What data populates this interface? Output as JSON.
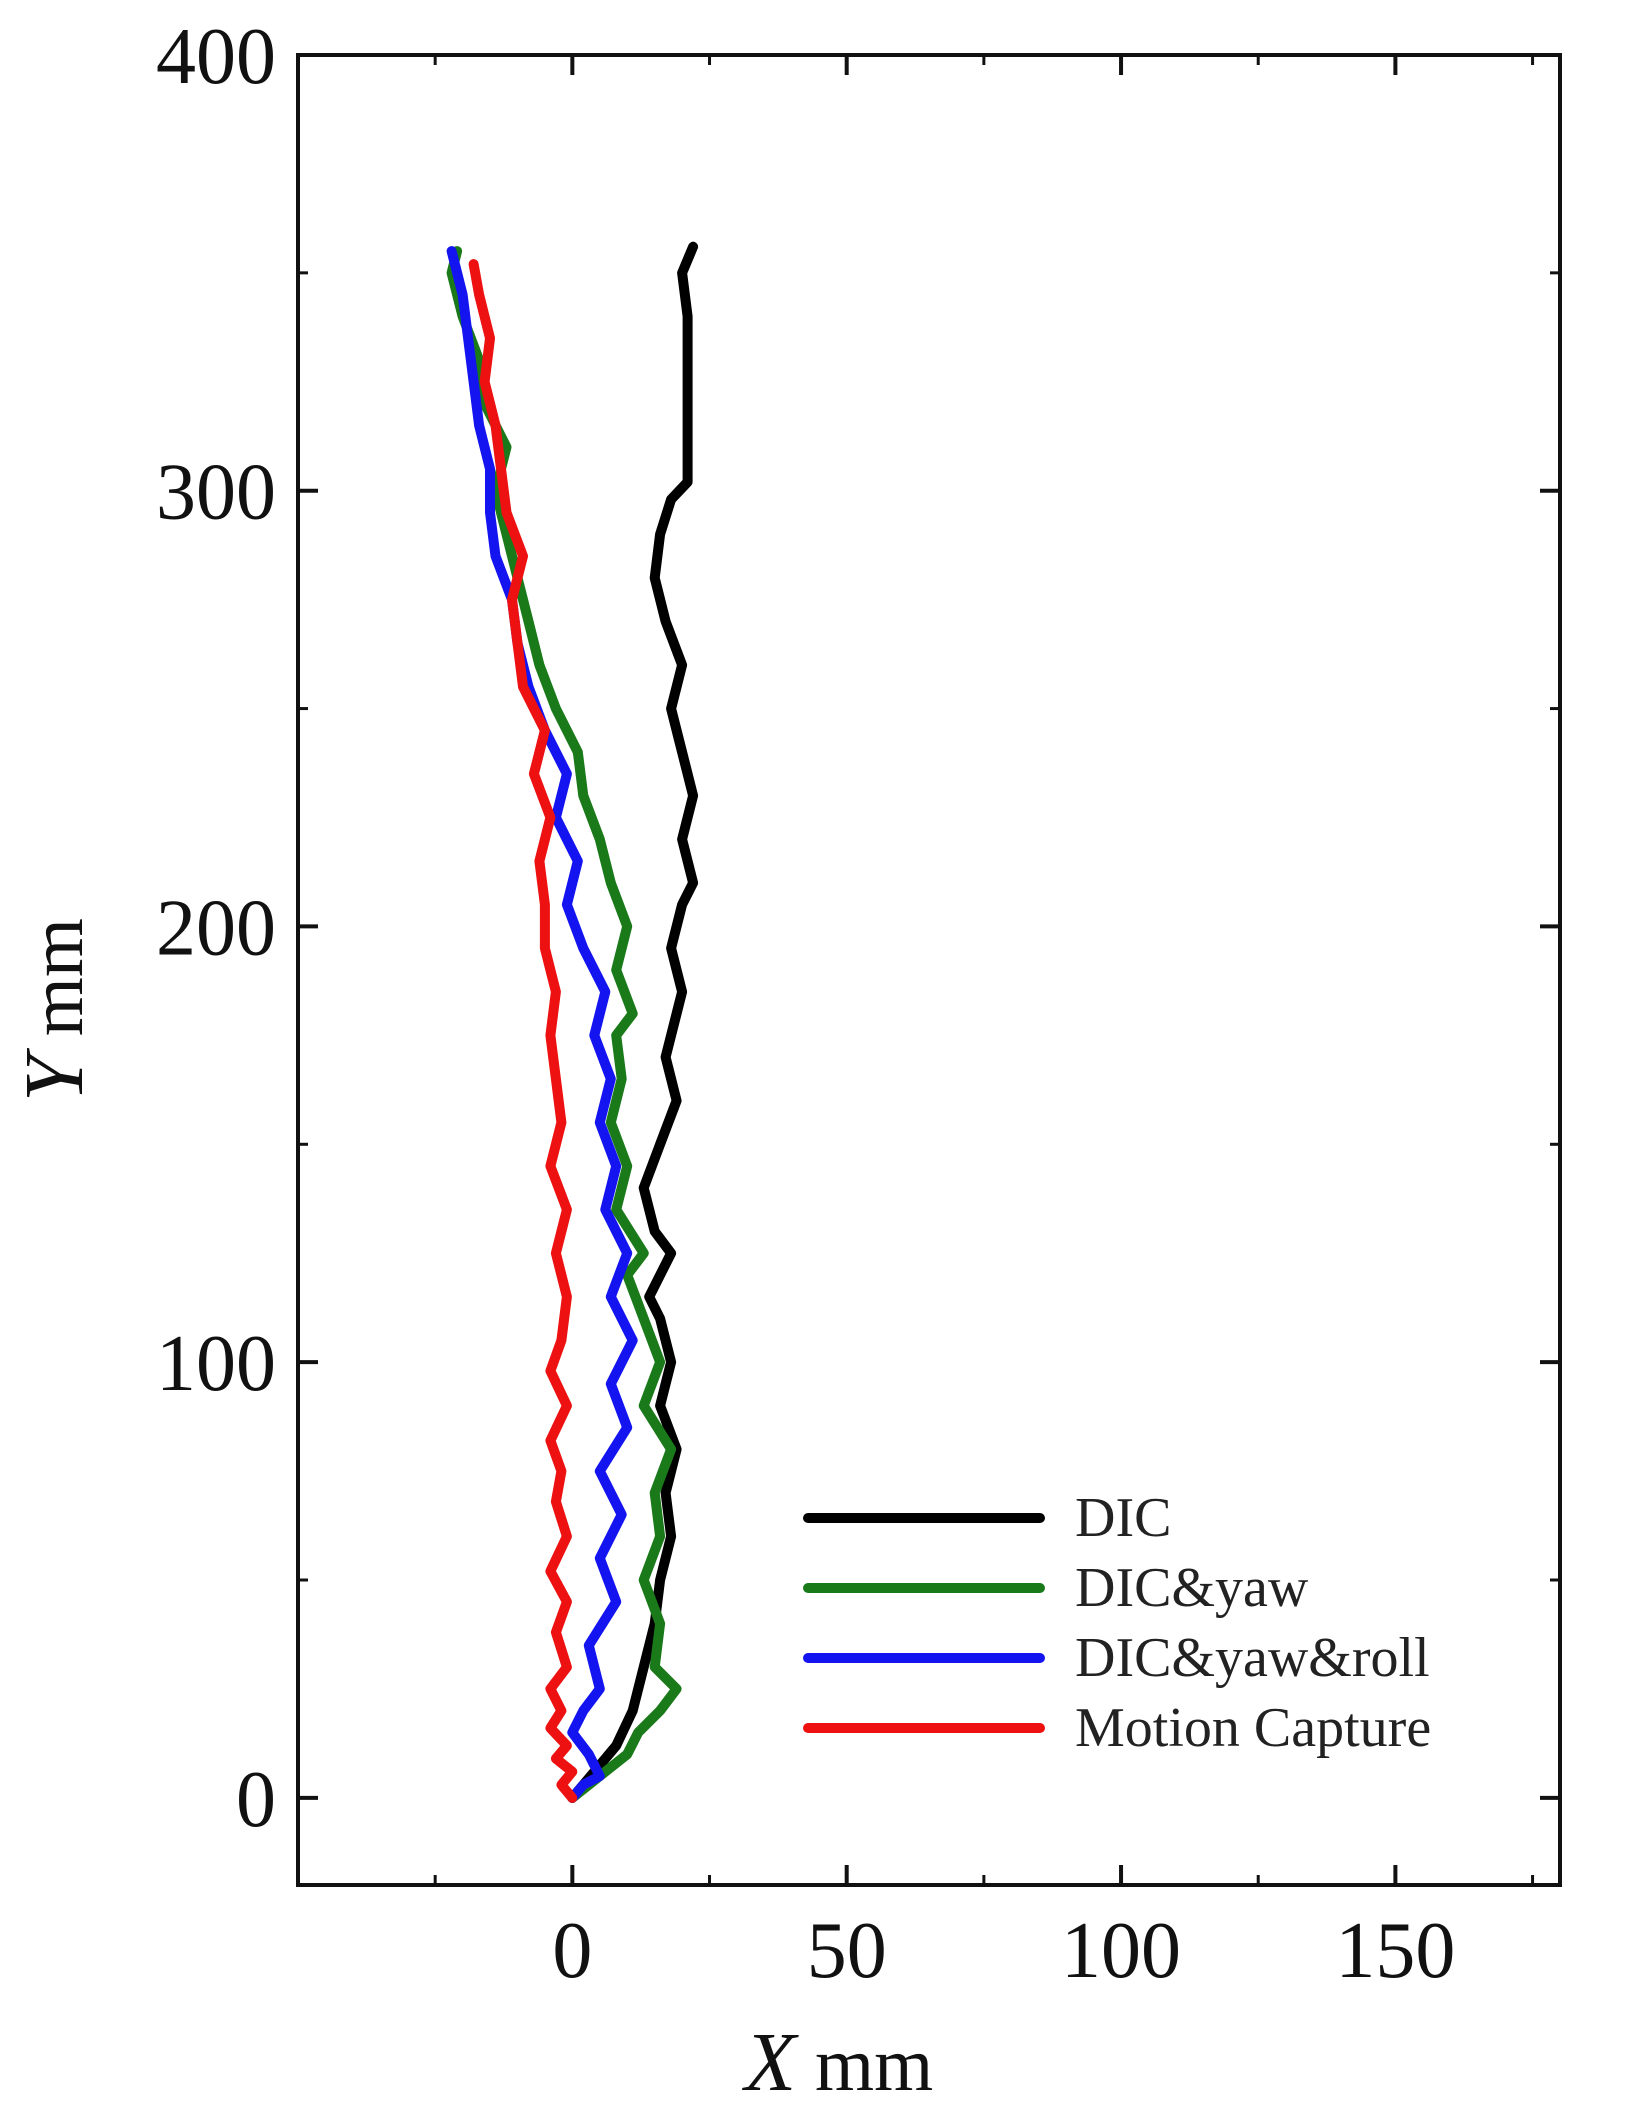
{
  "chart_data": {
    "type": "line",
    "xlabel": {
      "var": "X",
      "unit": "mm"
    },
    "ylabel": {
      "var": "Y",
      "unit": "mm"
    },
    "xlim": [
      -50,
      180
    ],
    "ylim": [
      -20,
      400
    ],
    "x_ticks": [
      0,
      50,
      100,
      150
    ],
    "x_minor_ticks": [
      -25,
      25,
      75,
      125,
      175
    ],
    "y_ticks": [
      0,
      100,
      200,
      300,
      400
    ],
    "y_minor_ticks": [
      50,
      150,
      250,
      350
    ],
    "grid": false,
    "legend_position": "bottom-right",
    "series": [
      {
        "name": "DIC",
        "color": "#000000",
        "points": [
          [
            0,
            0
          ],
          [
            4,
            6
          ],
          [
            8,
            12
          ],
          [
            11,
            20
          ],
          [
            13,
            30
          ],
          [
            15,
            40
          ],
          [
            16,
            50
          ],
          [
            18,
            60
          ],
          [
            17,
            70
          ],
          [
            19,
            80
          ],
          [
            16,
            90
          ],
          [
            17,
            95
          ],
          [
            18,
            100
          ],
          [
            16,
            110
          ],
          [
            14,
            115
          ],
          [
            18,
            125
          ],
          [
            15,
            130
          ],
          [
            13,
            140
          ],
          [
            16,
            150
          ],
          [
            19,
            160
          ],
          [
            17,
            170
          ],
          [
            19,
            180
          ],
          [
            20,
            185
          ],
          [
            18,
            195
          ],
          [
            20,
            205
          ],
          [
            22,
            210
          ],
          [
            20,
            220
          ],
          [
            22,
            230
          ],
          [
            20,
            240
          ],
          [
            18,
            250
          ],
          [
            20,
            260
          ],
          [
            17,
            270
          ],
          [
            15,
            280
          ],
          [
            16,
            290
          ],
          [
            18,
            298
          ],
          [
            21,
            302
          ],
          [
            21,
            310
          ],
          [
            21,
            320
          ],
          [
            21,
            330
          ],
          [
            21,
            340
          ],
          [
            20,
            350
          ],
          [
            22,
            356
          ]
        ]
      },
      {
        "name": "DIC&yaw",
        "color": "#1a7a1a",
        "points": [
          [
            0,
            0
          ],
          [
            3,
            3
          ],
          [
            6,
            6
          ],
          [
            10,
            10
          ],
          [
            12,
            15
          ],
          [
            16,
            20
          ],
          [
            19,
            25
          ],
          [
            15,
            30
          ],
          [
            16,
            40
          ],
          [
            13,
            50
          ],
          [
            16,
            60
          ],
          [
            15,
            70
          ],
          [
            18,
            80
          ],
          [
            13,
            90
          ],
          [
            16,
            100
          ],
          [
            13,
            110
          ],
          [
            10,
            120
          ],
          [
            13,
            125
          ],
          [
            8,
            135
          ],
          [
            10,
            145
          ],
          [
            7,
            155
          ],
          [
            9,
            165
          ],
          [
            8,
            175
          ],
          [
            11,
            180
          ],
          [
            8,
            190
          ],
          [
            10,
            200
          ],
          [
            7,
            210
          ],
          [
            5,
            220
          ],
          [
            2,
            230
          ],
          [
            1,
            240
          ],
          [
            -3,
            250
          ],
          [
            -6,
            260
          ],
          [
            -8,
            270
          ],
          [
            -10,
            280
          ],
          [
            -12,
            290
          ],
          [
            -14,
            300
          ],
          [
            -12,
            310
          ],
          [
            -16,
            320
          ],
          [
            -17,
            330
          ],
          [
            -20,
            340
          ],
          [
            -22,
            350
          ],
          [
            -21,
            355
          ]
        ]
      },
      {
        "name": "DIC&yaw&roll",
        "color": "#1414f0",
        "points": [
          [
            0,
            0
          ],
          [
            2,
            3
          ],
          [
            5,
            5
          ],
          [
            3,
            10
          ],
          [
            0,
            15
          ],
          [
            2,
            20
          ],
          [
            5,
            25
          ],
          [
            3,
            35
          ],
          [
            8,
            45
          ],
          [
            5,
            55
          ],
          [
            9,
            65
          ],
          [
            5,
            75
          ],
          [
            10,
            85
          ],
          [
            7,
            95
          ],
          [
            11,
            105
          ],
          [
            7,
            115
          ],
          [
            10,
            125
          ],
          [
            6,
            135
          ],
          [
            8,
            145
          ],
          [
            5,
            155
          ],
          [
            7,
            165
          ],
          [
            4,
            175
          ],
          [
            6,
            185
          ],
          [
            2,
            195
          ],
          [
            -1,
            205
          ],
          [
            1,
            215
          ],
          [
            -3,
            225
          ],
          [
            -1,
            235
          ],
          [
            -5,
            245
          ],
          [
            -8,
            255
          ],
          [
            -10,
            265
          ],
          [
            -11,
            275
          ],
          [
            -14,
            285
          ],
          [
            -15,
            295
          ],
          [
            -15,
            305
          ],
          [
            -17,
            315
          ],
          [
            -18,
            325
          ],
          [
            -19,
            335
          ],
          [
            -20,
            345
          ],
          [
            -22,
            355
          ]
        ]
      },
      {
        "name": "Motion Capture",
        "color": "#ee1111",
        "points": [
          [
            0,
            0
          ],
          [
            -2,
            3
          ],
          [
            0,
            6
          ],
          [
            -3,
            9
          ],
          [
            -1,
            12
          ],
          [
            -4,
            16
          ],
          [
            -2,
            20
          ],
          [
            -4,
            25
          ],
          [
            -1,
            30
          ],
          [
            -3,
            38
          ],
          [
            -1,
            45
          ],
          [
            -4,
            52
          ],
          [
            -1,
            60
          ],
          [
            -3,
            68
          ],
          [
            -2,
            75
          ],
          [
            -4,
            82
          ],
          [
            -1,
            90
          ],
          [
            -4,
            98
          ],
          [
            -2,
            105
          ],
          [
            -1,
            115
          ],
          [
            -3,
            125
          ],
          [
            -1,
            135
          ],
          [
            -4,
            145
          ],
          [
            -2,
            155
          ],
          [
            -3,
            165
          ],
          [
            -4,
            175
          ],
          [
            -3,
            185
          ],
          [
            -5,
            195
          ],
          [
            -5,
            205
          ],
          [
            -6,
            215
          ],
          [
            -4,
            225
          ],
          [
            -7,
            235
          ],
          [
            -5,
            245
          ],
          [
            -9,
            255
          ],
          [
            -10,
            265
          ],
          [
            -11,
            275
          ],
          [
            -9,
            285
          ],
          [
            -12,
            295
          ],
          [
            -13,
            305
          ],
          [
            -14,
            315
          ],
          [
            -16,
            325
          ],
          [
            -15,
            335
          ],
          [
            -17,
            345
          ],
          [
            -18,
            352
          ]
        ]
      }
    ]
  }
}
